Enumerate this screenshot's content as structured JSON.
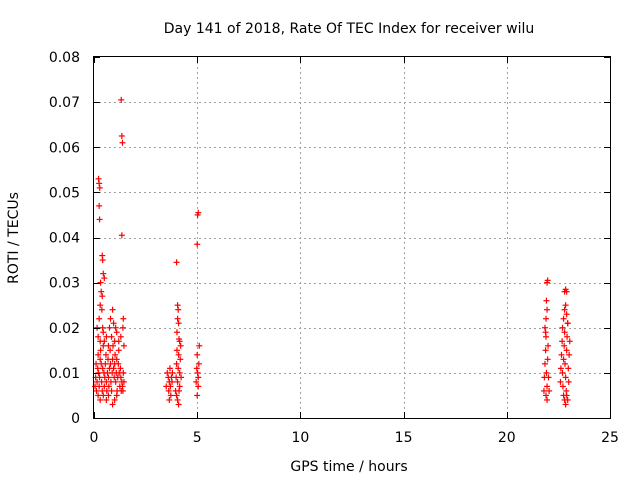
{
  "chart_data": {
    "type": "scatter",
    "title": "Day 141 of 2018, Rate Of TEC Index for receiver wilu",
    "xlabel": "GPS time / hours",
    "ylabel": "ROTI / TECUs",
    "xlim": [
      0,
      25
    ],
    "ylim": [
      0,
      0.08
    ],
    "xticks": [
      0,
      5,
      10,
      15,
      20,
      25
    ],
    "xtick_labels": [
      "0",
      "5",
      "10",
      "15",
      "20",
      "25"
    ],
    "yticks": [
      0,
      0.01,
      0.02,
      0.03,
      0.04,
      0.05,
      0.06,
      0.07,
      0.08
    ],
    "ytick_labels": [
      "0",
      "0.01",
      "0.02",
      "0.03",
      "0.04",
      "0.05",
      "0.06",
      "0.07",
      "0.08"
    ],
    "grid": true,
    "marker": "+",
    "color": "#ff0000",
    "series": [
      {
        "name": "ROTI",
        "points": [
          [
            0.05,
            0.007
          ],
          [
            0.08,
            0.009
          ],
          [
            0.1,
            0.012
          ],
          [
            0.12,
            0.006
          ],
          [
            0.15,
            0.008
          ],
          [
            0.18,
            0.011
          ],
          [
            0.2,
            0.014
          ],
          [
            0.22,
            0.01
          ],
          [
            0.25,
            0.007
          ],
          [
            0.27,
            0.009
          ],
          [
            0.3,
            0.013
          ],
          [
            0.32,
            0.015
          ],
          [
            0.35,
            0.012
          ],
          [
            0.37,
            0.008
          ],
          [
            0.4,
            0.006
          ],
          [
            0.42,
            0.011
          ],
          [
            0.45,
            0.016
          ],
          [
            0.48,
            0.01
          ],
          [
            0.5,
            0.007
          ],
          [
            0.52,
            0.009
          ],
          [
            0.55,
            0.012
          ],
          [
            0.58,
            0.014
          ],
          [
            0.6,
            0.008
          ],
          [
            0.62,
            0.006
          ],
          [
            0.65,
            0.01
          ],
          [
            0.68,
            0.013
          ],
          [
            0.7,
            0.009
          ],
          [
            0.72,
            0.007
          ],
          [
            0.75,
            0.011
          ],
          [
            0.78,
            0.015
          ],
          [
            0.8,
            0.012
          ],
          [
            0.82,
            0.008
          ],
          [
            0.85,
            0.006
          ],
          [
            0.88,
            0.01
          ],
          [
            0.9,
            0.013
          ],
          [
            0.92,
            0.016
          ],
          [
            0.95,
            0.011
          ],
          [
            0.98,
            0.009
          ],
          [
            1.0,
            0.012
          ],
          [
            1.02,
            0.014
          ],
          [
            1.05,
            0.008
          ],
          [
            1.08,
            0.01
          ],
          [
            1.1,
            0.013
          ],
          [
            1.12,
            0.006
          ],
          [
            1.15,
            0.009
          ],
          [
            1.18,
            0.012
          ],
          [
            1.2,
            0.015
          ],
          [
            1.22,
            0.01
          ],
          [
            1.25,
            0.007
          ],
          [
            1.28,
            0.011
          ],
          [
            1.3,
            0.009
          ],
          [
            1.32,
            0.006
          ],
          [
            1.35,
            0.008
          ],
          [
            1.38,
            0.007
          ],
          [
            1.4,
            0.006
          ],
          [
            1.42,
            0.01
          ],
          [
            1.45,
            0.008
          ],
          [
            0.15,
            0.02
          ],
          [
            0.2,
            0.018
          ],
          [
            0.25,
            0.022
          ],
          [
            0.3,
            0.017
          ],
          [
            0.3,
            0.025
          ],
          [
            0.32,
            0.03
          ],
          [
            0.35,
            0.028
          ],
          [
            0.38,
            0.024
          ],
          [
            0.4,
            0.027
          ],
          [
            0.42,
            0.02
          ],
          [
            0.45,
            0.019
          ],
          [
            0.5,
            0.017
          ],
          [
            0.6,
            0.018
          ],
          [
            0.7,
            0.016
          ],
          [
            0.75,
            0.02
          ],
          [
            0.8,
            0.022
          ],
          [
            0.85,
            0.018
          ],
          [
            0.9,
            0.024
          ],
          [
            0.95,
            0.021
          ],
          [
            1.0,
            0.017
          ],
          [
            1.05,
            0.02
          ],
          [
            1.1,
            0.019
          ],
          [
            1.2,
            0.017
          ],
          [
            1.3,
            0.018
          ],
          [
            1.4,
            0.02
          ],
          [
            1.42,
            0.022
          ],
          [
            1.45,
            0.016
          ],
          [
            0.22,
            0.053
          ],
          [
            0.25,
            0.052
          ],
          [
            0.28,
            0.051
          ],
          [
            0.25,
            0.047
          ],
          [
            0.27,
            0.044
          ],
          [
            0.4,
            0.036
          ],
          [
            0.42,
            0.035
          ],
          [
            0.45,
            0.032
          ],
          [
            0.5,
            0.031
          ],
          [
            1.32,
            0.0705
          ],
          [
            1.35,
            0.0625
          ],
          [
            1.38,
            0.061
          ],
          [
            1.35,
            0.0405
          ],
          [
            0.3,
            0.004
          ],
          [
            0.45,
            0.005
          ],
          [
            0.6,
            0.004
          ],
          [
            0.9,
            0.003
          ],
          [
            1.0,
            0.004
          ],
          [
            1.1,
            0.005
          ],
          [
            0.2,
            0.005
          ],
          [
            0.7,
            0.005
          ],
          [
            3.5,
            0.007
          ],
          [
            3.55,
            0.01
          ],
          [
            3.6,
            0.009
          ],
          [
            3.62,
            0.006
          ],
          [
            3.65,
            0.008
          ],
          [
            3.68,
            0.011
          ],
          [
            3.7,
            0.007
          ],
          [
            3.72,
            0.005
          ],
          [
            3.75,
            0.009
          ],
          [
            3.78,
            0.008
          ],
          [
            3.8,
            0.01
          ],
          [
            3.65,
            0.004
          ],
          [
            3.95,
            0.006
          ],
          [
            3.98,
            0.009
          ],
          [
            4.0,
            0.012
          ],
          [
            4.02,
            0.015
          ],
          [
            4.05,
            0.008
          ],
          [
            4.08,
            0.011
          ],
          [
            4.1,
            0.014
          ],
          [
            4.12,
            0.006
          ],
          [
            4.15,
            0.01
          ],
          [
            4.18,
            0.013
          ],
          [
            4.2,
            0.016
          ],
          [
            4.22,
            0.009
          ],
          [
            4.05,
            0.004
          ],
          [
            4.1,
            0.003
          ],
          [
            4.0,
            0.005
          ],
          [
            4.15,
            0.007
          ],
          [
            4.02,
            0.019
          ],
          [
            4.05,
            0.022
          ],
          [
            4.08,
            0.024
          ],
          [
            4.1,
            0.021
          ],
          [
            4.12,
            0.0175
          ],
          [
            4.15,
            0.017
          ],
          [
            4.0,
            0.0345
          ],
          [
            4.05,
            0.025
          ],
          [
            4.95,
            0.008
          ],
          [
            4.98,
            0.011
          ],
          [
            5.0,
            0.014
          ],
          [
            5.02,
            0.01
          ],
          [
            5.05,
            0.007
          ],
          [
            5.08,
            0.012
          ],
          [
            5.1,
            0.016
          ],
          [
            5.0,
            0.005
          ],
          [
            5.05,
            0.009
          ],
          [
            5.0,
            0.0385
          ],
          [
            5.02,
            0.045
          ],
          [
            5.05,
            0.0455
          ],
          [
            21.8,
            0.006
          ],
          [
            21.82,
            0.009
          ],
          [
            21.85,
            0.012
          ],
          [
            21.88,
            0.015
          ],
          [
            21.9,
            0.018
          ],
          [
            21.92,
            0.01
          ],
          [
            21.95,
            0.007
          ],
          [
            21.98,
            0.013
          ],
          [
            22.0,
            0.016
          ],
          [
            22.02,
            0.009
          ],
          [
            22.05,
            0.006
          ],
          [
            21.85,
            0.02
          ],
          [
            21.9,
            0.022
          ],
          [
            21.95,
            0.024
          ],
          [
            21.88,
            0.019
          ],
          [
            21.92,
            0.026
          ],
          [
            21.95,
            0.03
          ],
          [
            21.98,
            0.0305
          ],
          [
            21.9,
            0.005
          ],
          [
            21.95,
            0.004
          ],
          [
            22.6,
            0.008
          ],
          [
            22.62,
            0.011
          ],
          [
            22.65,
            0.014
          ],
          [
            22.68,
            0.017
          ],
          [
            22.7,
            0.01
          ],
          [
            22.72,
            0.007
          ],
          [
            22.75,
            0.013
          ],
          [
            22.78,
            0.016
          ],
          [
            22.8,
            0.019
          ],
          [
            22.82,
            0.012
          ],
          [
            22.85,
            0.009
          ],
          [
            22.88,
            0.006
          ],
          [
            22.9,
            0.015
          ],
          [
            22.92,
            0.018
          ],
          [
            22.95,
            0.021
          ],
          [
            22.98,
            0.011
          ],
          [
            23.0,
            0.008
          ],
          [
            23.02,
            0.014
          ],
          [
            23.05,
            0.017
          ],
          [
            22.7,
            0.02
          ],
          [
            22.75,
            0.022
          ],
          [
            22.8,
            0.024
          ],
          [
            22.85,
            0.025
          ],
          [
            22.9,
            0.023
          ],
          [
            22.95,
            0.021
          ],
          [
            22.8,
            0.028
          ],
          [
            22.85,
            0.0285
          ],
          [
            22.9,
            0.028
          ],
          [
            22.8,
            0.004
          ],
          [
            22.85,
            0.003
          ],
          [
            22.9,
            0.005
          ],
          [
            22.95,
            0.004
          ],
          [
            22.75,
            0.005
          ]
        ]
      }
    ]
  }
}
